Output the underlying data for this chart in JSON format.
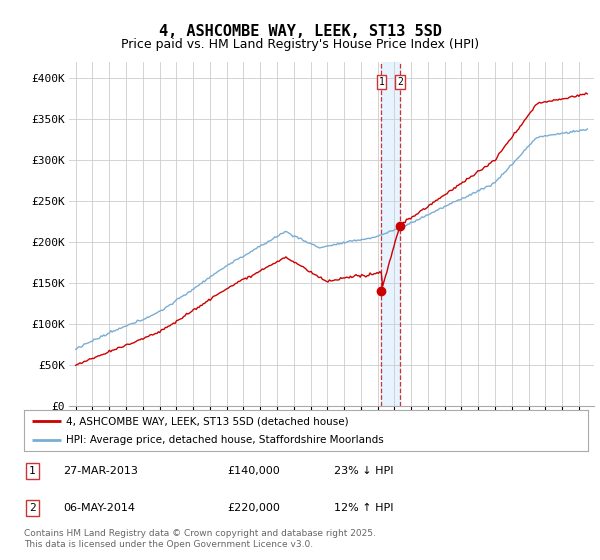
{
  "title": "4, ASHCOMBE WAY, LEEK, ST13 5SD",
  "subtitle": "Price paid vs. HM Land Registry's House Price Index (HPI)",
  "ylim": [
    0,
    420000
  ],
  "yticks": [
    0,
    50000,
    100000,
    150000,
    200000,
    250000,
    300000,
    350000,
    400000
  ],
  "ytick_labels": [
    "£0",
    "£50K",
    "£100K",
    "£150K",
    "£200K",
    "£250K",
    "£300K",
    "£350K",
    "£400K"
  ],
  "line_red_color": "#cc0000",
  "line_blue_color": "#7aadd4",
  "shade_color": "#ddeeff",
  "vline_color": "#cc3333",
  "transaction1_date": 2013.23,
  "transaction1_price": 140000,
  "transaction2_date": 2014.34,
  "transaction2_price": 220000,
  "legend1_label": "4, ASHCOMBE WAY, LEEK, ST13 5SD (detached house)",
  "legend2_label": "HPI: Average price, detached house, Staffordshire Moorlands",
  "annotation1_date": "27-MAR-2013",
  "annotation1_price": "£140,000",
  "annotation1_hpi": "23% ↓ HPI",
  "annotation2_date": "06-MAY-2014",
  "annotation2_price": "£220,000",
  "annotation2_hpi": "12% ↑ HPI",
  "footer": "Contains HM Land Registry data © Crown copyright and database right 2025.\nThis data is licensed under the Open Government Licence v3.0.",
  "background_color": "#ffffff",
  "grid_color": "#cccccc",
  "title_fontsize": 11,
  "subtitle_fontsize": 9,
  "tick_fontsize": 8,
  "xstart": 1995,
  "xend": 2025.5
}
